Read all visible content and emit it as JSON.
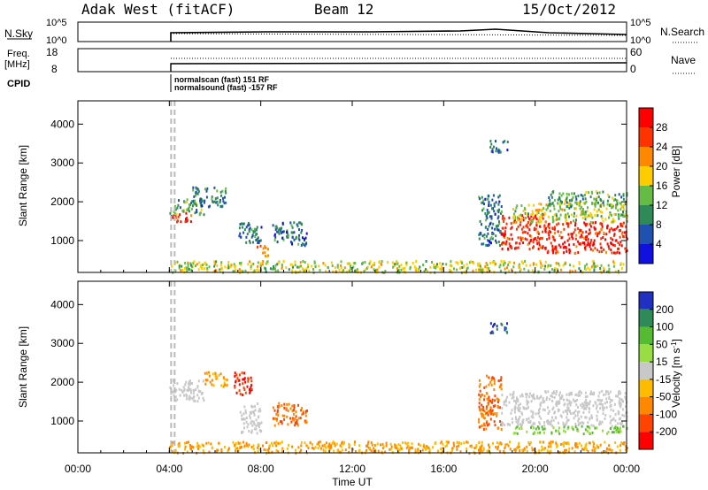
{
  "header": {
    "station": "Adak West (fitACF)",
    "beam": "Beam 12",
    "date": "15/Oct/2012"
  },
  "summary": {
    "nsky_label_1": "N.Sky",
    "nsky_tick_top": "10^5",
    "nsky_tick_bottom": "10^0",
    "nsearch_label": "N.Search",
    "nsearch_tick_top": "10^5",
    "nsearch_tick_bottom": "10^0",
    "freq_label_1": "Freq.",
    "freq_label_2": "[MHz]",
    "freq_tick_top": "18",
    "freq_tick_bottom": "8",
    "nave_label": "Nave",
    "nave_tick_top": "60",
    "nave_tick_bottom": "0",
    "cpid_label": "CPID",
    "cpid_line_1": "normalscan (fast) 151 RF",
    "cpid_line_2": "normalsound (fast) -157 RF"
  },
  "axes": {
    "ylabel": "Slant Range [km]",
    "xlabel": "Time UT",
    "xticks": [
      "00:00",
      "04:00",
      "08:00",
      "12:00",
      "16:00",
      "20:00",
      "00:00"
    ],
    "yticks": [
      "1000",
      "2000",
      "3000",
      "4000"
    ]
  },
  "power_bar": {
    "label": "Power [dB]",
    "ticks": [
      "4",
      "8",
      "12",
      "16",
      "20",
      "24",
      "28"
    ],
    "colors": [
      "#1010e0",
      "#2050b0",
      "#2e8b57",
      "#66bb44",
      "#ffcc00",
      "#ff8800",
      "#ff3300",
      "#ff0000"
    ]
  },
  "velocity_bar": {
    "label": "Velocity [m s",
    "label_exp": "-1",
    "label_close": "]",
    "ticks": [
      "200",
      "100",
      "50",
      "15",
      "-15",
      "-50",
      "-100",
      "-200"
    ],
    "colors": [
      "#2030c0",
      "#2e8b57",
      "#55bb33",
      "#99dd44",
      "#c8c8c8",
      "#ffbb00",
      "#ff8800",
      "#ff4400",
      "#ff0000"
    ]
  },
  "chart_data": {
    "type": "heatmap",
    "x_range_hours": [
      0,
      24
    ],
    "y_range_km": [
      180,
      4600
    ],
    "radar_on_hour": 4.0,
    "power_panel": {
      "regions": [
        {
          "t0": 4.0,
          "t1": 5.0,
          "r0": 1500,
          "r1": 1750,
          "value": 28
        },
        {
          "t0": 4.0,
          "t1": 5.5,
          "r0": 1700,
          "r1": 2100,
          "value": 12
        },
        {
          "t0": 5.0,
          "t1": 6.5,
          "r0": 1900,
          "r1": 2400,
          "value": 8
        },
        {
          "t0": 7.0,
          "t1": 8.0,
          "r0": 900,
          "r1": 1500,
          "value": 8
        },
        {
          "t0": 7.8,
          "t1": 8.3,
          "r0": 600,
          "r1": 900,
          "value": 20
        },
        {
          "t0": 8.5,
          "t1": 10.0,
          "r0": 900,
          "r1": 1500,
          "value": 8
        },
        {
          "t0": 4.0,
          "t1": 24.0,
          "r0": 200,
          "r1": 500,
          "value": 16
        },
        {
          "t0": 17.5,
          "t1": 18.5,
          "r0": 900,
          "r1": 2200,
          "value": 8
        },
        {
          "t0": 18.5,
          "t1": 20.5,
          "r0": 800,
          "r1": 1700,
          "value": 28
        },
        {
          "t0": 20.5,
          "t1": 24.0,
          "r0": 700,
          "r1": 1500,
          "value": 28
        },
        {
          "t0": 19.0,
          "t1": 24.0,
          "r0": 1500,
          "r1": 2000,
          "value": 16
        },
        {
          "t0": 20.5,
          "t1": 24.0,
          "r0": 1900,
          "r1": 2300,
          "value": 12
        },
        {
          "t0": 18.0,
          "t1": 18.8,
          "r0": 3300,
          "r1": 3600,
          "value": 8
        }
      ]
    },
    "velocity_panel": {
      "regions": [
        {
          "t0": 4.0,
          "t1": 5.5,
          "r0": 1500,
          "r1": 2100,
          "value": 0
        },
        {
          "t0": 5.5,
          "t1": 6.5,
          "r0": 1900,
          "r1": 2300,
          "value": -50
        },
        {
          "t0": 6.8,
          "t1": 7.6,
          "r0": 1700,
          "r1": 2300,
          "value": -200
        },
        {
          "t0": 7.0,
          "t1": 8.0,
          "r0": 700,
          "r1": 1500,
          "value": 0
        },
        {
          "t0": 8.5,
          "t1": 10.0,
          "r0": 900,
          "r1": 1500,
          "value": -100
        },
        {
          "t0": 4.0,
          "t1": 24.0,
          "r0": 200,
          "r1": 500,
          "value": -50
        },
        {
          "t0": 17.5,
          "t1": 18.5,
          "r0": 800,
          "r1": 2200,
          "value": -100
        },
        {
          "t0": 18.5,
          "t1": 24.0,
          "r0": 900,
          "r1": 1800,
          "value": 0
        },
        {
          "t0": 19.0,
          "t1": 24.0,
          "r0": 700,
          "r1": 900,
          "value": 50
        },
        {
          "t0": 18.0,
          "t1": 18.8,
          "r0": 3300,
          "r1": 3600,
          "value": 200
        }
      ]
    }
  }
}
